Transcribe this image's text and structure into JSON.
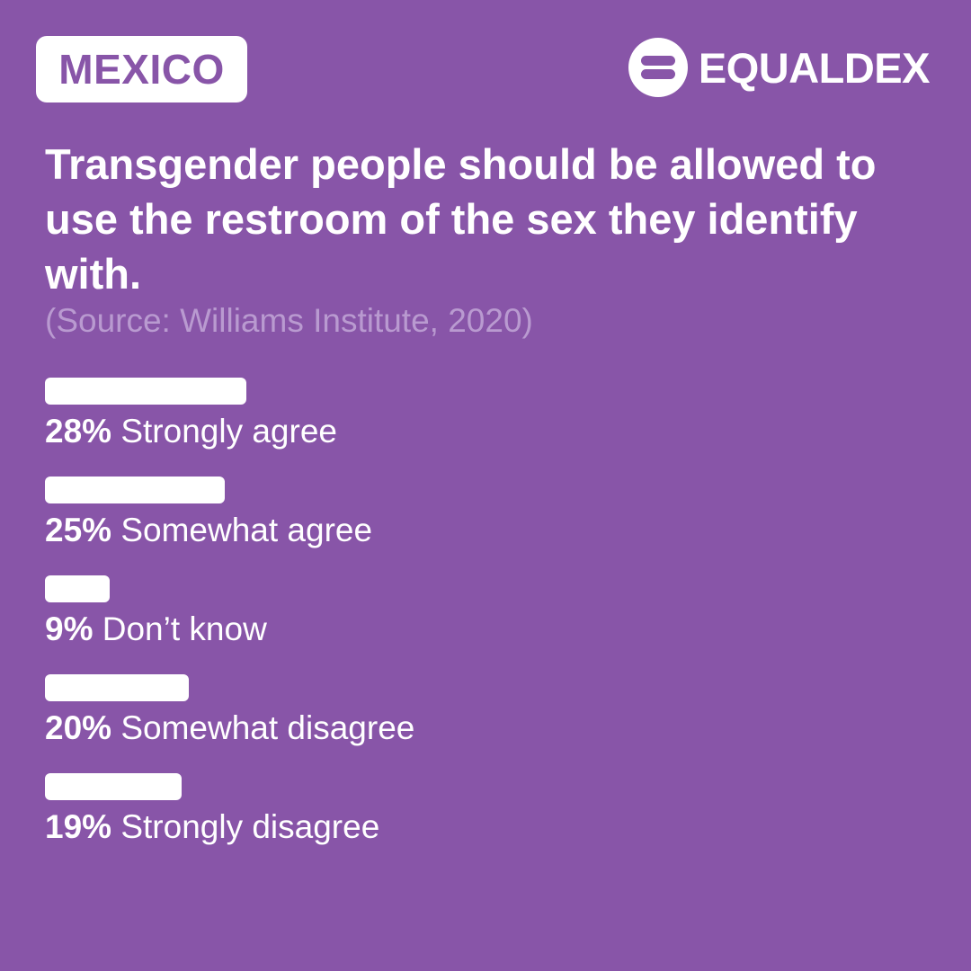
{
  "header": {
    "country": "MEXICO",
    "brand_name": "EQUALDEX",
    "brand_logo_icon": "equaldex-equals-logo-icon"
  },
  "question": {
    "title": "Transgender people should be allowed to use the restroom of the sex they identify with.",
    "source": "(Source: Williams Institute, 2020)"
  },
  "colors": {
    "background": "#8855a8",
    "bar": "#ffffff",
    "source_text": "#b99ad0"
  },
  "chart_data": {
    "type": "bar",
    "orientation": "horizontal",
    "categories": [
      "Strongly agree",
      "Somewhat agree",
      "Don’t know",
      "Somewhat disagree",
      "Strongly disagree"
    ],
    "values": [
      28,
      25,
      9,
      20,
      19
    ],
    "value_labels": [
      "28%",
      "25%",
      "9%",
      "20%",
      "19%"
    ],
    "value_unit": "%",
    "xlim": [
      0,
      100
    ],
    "grid": false,
    "title": "Transgender people should be allowed to use the restroom of the sex they identify with."
  }
}
